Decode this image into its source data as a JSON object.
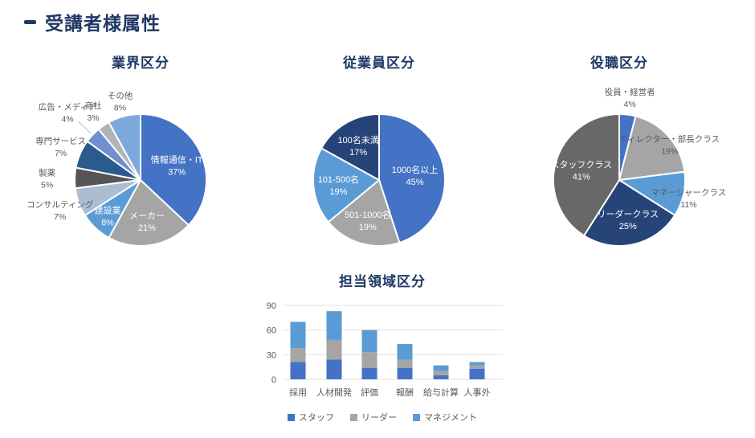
{
  "header": {
    "title": "受講者様属性"
  },
  "palette": {
    "title_navy": "#1F3864",
    "label_gray": "#595959",
    "grid_gray": "#E2E2E2",
    "leader_line": "#9DC3E6",
    "inside_label": "#FFFFFF"
  },
  "chart_data": [
    {
      "id": "industry",
      "type": "pie",
      "title": "業界区分",
      "slices": [
        {
          "label": "情報通信・IT",
          "value": 37,
          "color": "#4472C4",
          "pos": "in",
          "lr": 0.6
        },
        {
          "label": "メーカー",
          "value": 21,
          "color": "#A5A5A5",
          "pos": "in",
          "lr": 0.62
        },
        {
          "label": "建設業",
          "value": 8,
          "color": "#5B9BD5",
          "pos": "in",
          "lr": 0.73
        },
        {
          "label": "コンサルティング",
          "value": 7,
          "color": "#ACBCD2",
          "pos": "out",
          "lr": 1.3
        },
        {
          "label": "製薬",
          "value": 5,
          "color": "#555555",
          "pos": "out",
          "lr": 1.42
        },
        {
          "label": "専門サービス",
          "value": 7,
          "color": "#2B5B8D",
          "pos": "out",
          "lr": 1.32
        },
        {
          "label": "広告・メディア",
          "value": 4,
          "color": "#6E8FD0",
          "pos": "out",
          "lr": 1.52,
          "leader": true
        },
        {
          "label": "商社",
          "value": 3,
          "color": "#B3B3B6",
          "pos": "out",
          "lr": 1.28
        },
        {
          "label": "その他",
          "value": 8,
          "color": "#7CA9DC",
          "pos": "out",
          "lr": 1.25
        }
      ]
    },
    {
      "id": "employees",
      "type": "pie",
      "title": "従業員区分",
      "slices": [
        {
          "label": "1000名以上",
          "value": 45,
          "color": "#4472C4",
          "pos": "in",
          "lr": 0.55
        },
        {
          "label": "501-1000名",
          "value": 19,
          "color": "#A5A5A5",
          "pos": "in",
          "lr": 0.62
        },
        {
          "label": "101-500名",
          "value": 19,
          "color": "#5B9BD5",
          "pos": "in",
          "lr": 0.62
        },
        {
          "label": "100名未満",
          "value": 17,
          "color": "#264478",
          "pos": "in",
          "lr": 0.62
        }
      ]
    },
    {
      "id": "position",
      "type": "pie",
      "title": "役職区分",
      "slices": [
        {
          "label": "役員・経営者",
          "value": 4,
          "color": "#4472C4",
          "pos": "out",
          "lr": 1.28
        },
        {
          "label": "ディレクター・部長クラス",
          "value": 19,
          "color": "#A5A5A5",
          "pos": "out",
          "lr": 1.02,
          "dy": 10
        },
        {
          "label": "マネージャークラス",
          "value": 11,
          "color": "#5B9BD5",
          "pos": "out",
          "lr": 1.18,
          "dx": -8
        },
        {
          "label": "リーダークラス",
          "value": 25,
          "color": "#264478",
          "pos": "in",
          "lr": 0.6
        },
        {
          "label": "スタッフクラス",
          "value": 41,
          "color": "#686868",
          "pos": "in",
          "lr": 0.6
        }
      ]
    },
    {
      "id": "areas",
      "type": "bar",
      "title": "担当領域区分",
      "categories": [
        "採用",
        "人材開発",
        "評価",
        "報酬",
        "給与計算",
        "人事外"
      ],
      "series": [
        {
          "name": "スタッフ",
          "color": "#4472C4",
          "values": [
            21,
            24,
            14,
            14,
            5,
            13
          ]
        },
        {
          "name": "リーダー",
          "color": "#A5A5A5",
          "values": [
            17,
            24,
            19,
            10,
            5,
            4
          ]
        },
        {
          "name": "マネジメント",
          "color": "#5B9BD5",
          "values": [
            32,
            35,
            27,
            19,
            7,
            4
          ]
        }
      ],
      "y_ticks": [
        0,
        30,
        60,
        90
      ],
      "ylim": [
        0,
        90
      ],
      "grid": true,
      "legend_position": "bottom"
    }
  ]
}
